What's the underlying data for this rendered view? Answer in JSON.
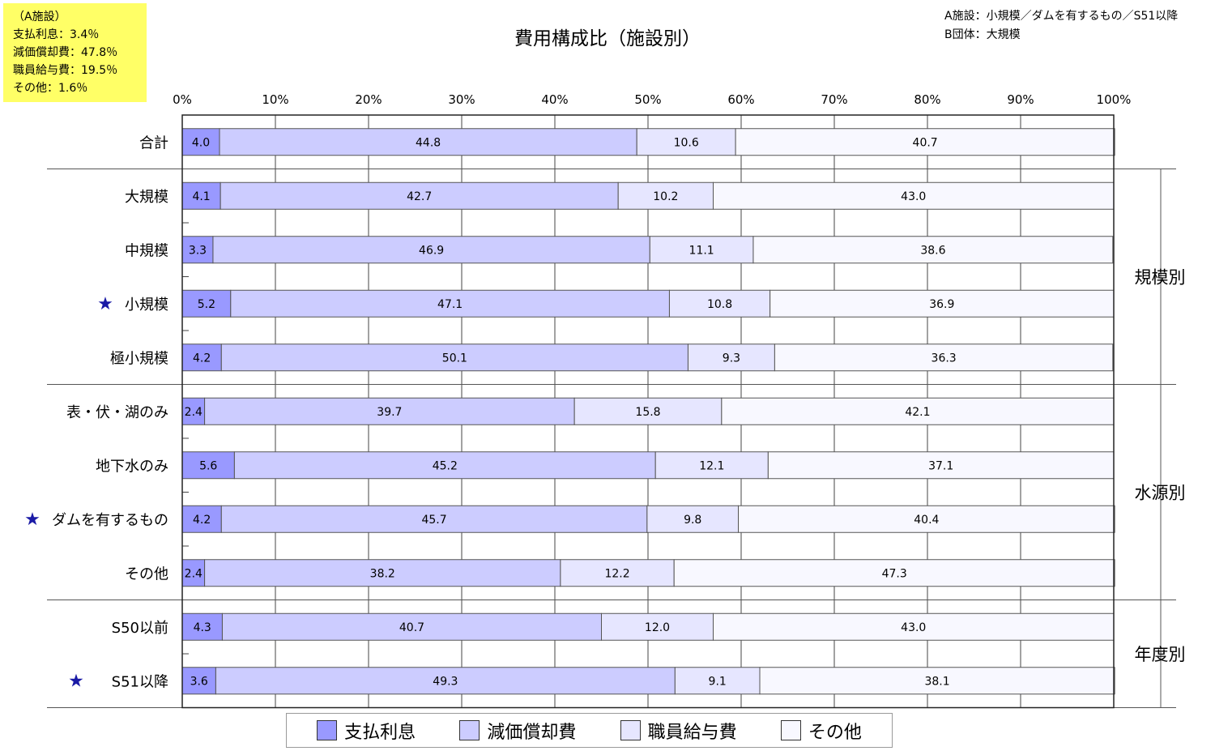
{
  "note_box": {
    "lines": [
      "（A施設）",
      "支払利息：3.4％",
      "減価償却費：47.8％",
      "職員給与費：19.5％",
      "その他：1.6％"
    ]
  },
  "top_right_note": {
    "lines": [
      "A施設：小規模／ダムを有するもの／S51以降",
      "B団体：大規模"
    ]
  },
  "colors": {
    "支払利息": "#9999ff",
    "減価償却費": "#ccccff",
    "職員給与費": "#e6e6ff",
    "その他": "#f8f8ff",
    "star": "#1a1aa6"
  },
  "chart_data": {
    "type": "bar",
    "orientation": "horizontal",
    "stacked": "percent",
    "title": "費用構成比（施設別）",
    "x_ticks": [
      "0%",
      "10%",
      "20%",
      "30%",
      "40%",
      "50%",
      "60%",
      "70%",
      "80%",
      "90%",
      "100%"
    ],
    "xlim": [
      0,
      100
    ],
    "categories": [
      "合計",
      "大規模",
      "中規模",
      "小規模",
      "極小規模",
      "表・伏・湖のみ",
      "地下水のみ",
      "ダムを有するもの",
      "その他",
      "S50以前",
      "S51以降"
    ],
    "starred": [
      false,
      false,
      false,
      true,
      false,
      false,
      false,
      true,
      false,
      false,
      true
    ],
    "series": [
      {
        "name": "支払利息",
        "values": [
          4.0,
          4.1,
          3.3,
          5.2,
          4.2,
          2.4,
          5.6,
          4.2,
          2.4,
          4.3,
          3.6
        ]
      },
      {
        "name": "減価償却費",
        "values": [
          44.8,
          42.7,
          46.9,
          47.1,
          50.1,
          39.7,
          45.2,
          45.7,
          38.2,
          40.7,
          49.3
        ]
      },
      {
        "name": "職員給与費",
        "values": [
          10.6,
          10.2,
          11.1,
          10.8,
          9.3,
          15.8,
          12.1,
          9.8,
          12.2,
          12.0,
          9.1
        ]
      },
      {
        "name": "その他",
        "values": [
          40.7,
          43.0,
          38.6,
          36.9,
          36.3,
          42.1,
          37.1,
          40.4,
          47.3,
          43.0,
          38.1
        ]
      }
    ],
    "groups": [
      {
        "label": "規模別",
        "start": 1,
        "end": 4
      },
      {
        "label": "水源別",
        "start": 5,
        "end": 8
      },
      {
        "label": "年度別",
        "start": 9,
        "end": 10
      }
    ],
    "legend": {
      "position": "bottom",
      "entries": [
        "支払利息",
        "減価償却費",
        "職員給与費",
        "その他"
      ]
    },
    "grid": true
  }
}
